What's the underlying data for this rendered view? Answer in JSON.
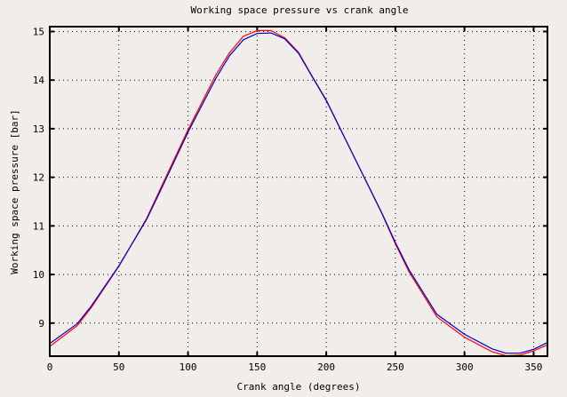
{
  "chart_data": {
    "type": "line",
    "title": "Working space pressure vs crank angle",
    "xlabel": "Crank angle (degrees)",
    "ylabel": "Working space pressure [bar]",
    "xlim": [
      0,
      360
    ],
    "ylim": [
      8.32,
      15.1
    ],
    "xticks": [
      0,
      50,
      100,
      150,
      200,
      250,
      300,
      350
    ],
    "yticks": [
      9,
      10,
      11,
      12,
      13,
      14,
      15
    ],
    "grid": true,
    "series": [
      {
        "color": "#ff0000",
        "x": [
          0,
          20,
          30,
          50,
          70,
          80,
          100,
          120,
          130,
          140,
          150,
          160,
          170,
          180,
          190,
          200,
          220,
          240,
          250,
          260,
          280,
          300,
          320,
          330,
          340,
          350,
          360
        ],
        "y": [
          8.52,
          8.95,
          9.32,
          10.17,
          11.15,
          11.76,
          12.98,
          14.1,
          14.56,
          14.9,
          15.02,
          15.02,
          14.87,
          14.57,
          14.07,
          13.59,
          12.43,
          11.27,
          10.63,
          10.05,
          9.13,
          8.71,
          8.41,
          8.33,
          8.34,
          8.43,
          8.55
        ]
      },
      {
        "color": "#0000cc",
        "x": [
          0,
          20,
          30,
          50,
          70,
          80,
          100,
          120,
          130,
          140,
          150,
          160,
          170,
          180,
          190,
          200,
          220,
          240,
          250,
          260,
          280,
          300,
          320,
          330,
          340,
          350,
          360
        ],
        "y": [
          8.58,
          8.99,
          9.35,
          10.18,
          11.13,
          11.72,
          12.93,
          14.03,
          14.5,
          14.83,
          14.96,
          14.97,
          14.85,
          14.55,
          14.06,
          13.58,
          12.43,
          11.28,
          10.66,
          10.09,
          9.18,
          8.77,
          8.47,
          8.38,
          8.38,
          8.46,
          8.6
        ]
      }
    ]
  }
}
